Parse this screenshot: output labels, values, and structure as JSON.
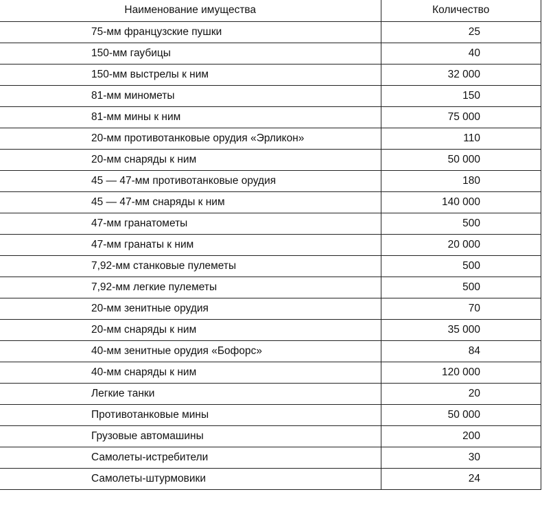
{
  "table": {
    "headers": [
      "Наименование имущества",
      "Количество"
    ],
    "rows": [
      [
        "75-мм французские пушки",
        "25"
      ],
      [
        "150-мм гаубицы",
        "40"
      ],
      [
        "150-мм выстрелы к ним",
        "32 000"
      ],
      [
        "81-мм минометы",
        "150"
      ],
      [
        "81-мм мины к ним",
        "75 000"
      ],
      [
        "20-мм противотанковые орудия «Эрликон»",
        "110"
      ],
      [
        "20-мм снаряды к ним",
        "50 000"
      ],
      [
        "45 — 47-мм противотанковые орудия",
        "180"
      ],
      [
        "45 — 47-мм снаряды к ним",
        "140 000"
      ],
      [
        "47-мм гранатометы",
        "500"
      ],
      [
        "47-мм гранаты к ним",
        "20 000"
      ],
      [
        "7,92-мм станковые пулеметы",
        "500"
      ],
      [
        "7,92-мм легкие пулеметы",
        "500"
      ],
      [
        "20-мм зенитные орудия",
        "70"
      ],
      [
        "20-мм снаряды к ним",
        "35 000"
      ],
      [
        "40-мм зенитные орудия «Бофорс»",
        "84"
      ],
      [
        "40-мм снаряды к ним",
        "120 000"
      ],
      [
        "Легкие танки",
        "20"
      ],
      [
        "Противотанковые мины",
        "50 000"
      ],
      [
        "Грузовые автомашины",
        "200"
      ],
      [
        "Самолеты-истребители",
        "30"
      ],
      [
        "Самолеты-штурмовики",
        "24"
      ]
    ]
  }
}
